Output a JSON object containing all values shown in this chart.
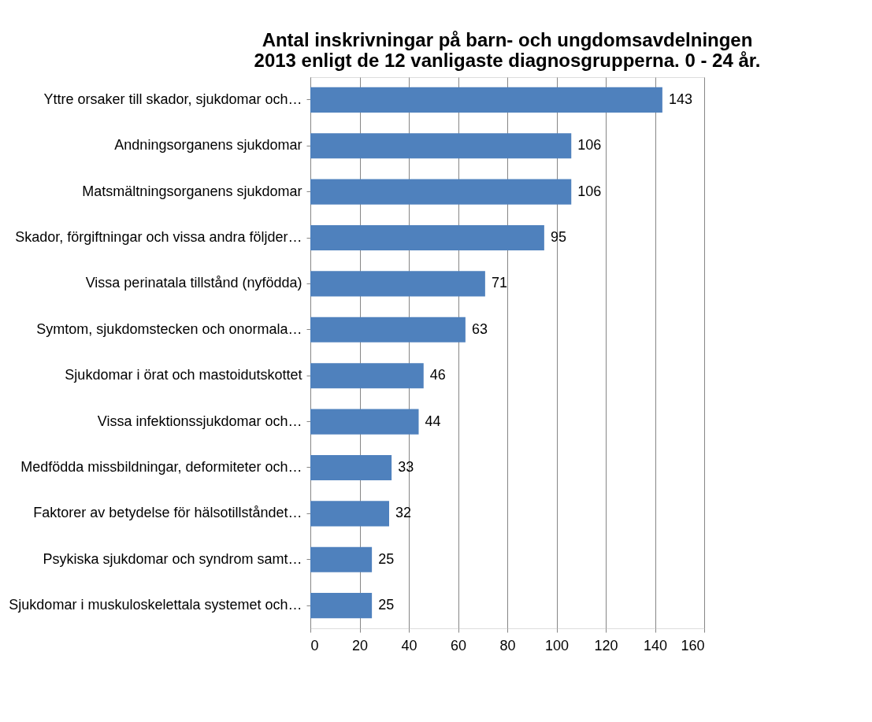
{
  "chart_data": {
    "type": "bar",
    "orientation": "horizontal",
    "title": [
      "Antal inskrivningar på barn- och ungdomsavdelningen",
      "2013 enligt de 12 vanligaste diagnosgrupperna. 0 - 24 år."
    ],
    "categories": [
      "Yttre orsaker till skador, sjukdomar och…",
      "Andningsorganens sjukdomar",
      "Matsmältningsorganens sjukdomar",
      "Skador, förgiftningar och vissa andra följder…",
      "Vissa perinatala tillstånd (nyfödda)",
      "Symtom, sjukdomstecken och onormala…",
      "Sjukdomar i örat och mastoidutskottet",
      "Vissa infektionssjukdomar och…",
      "Medfödda missbildningar, deformiteter och…",
      "Faktorer av betydelse för hälsotillståndet…",
      "Psykiska sjukdomar och syndrom samt…",
      "Sjukdomar i muskuloskelettala systemet och…"
    ],
    "values": [
      143,
      106,
      106,
      95,
      71,
      63,
      46,
      44,
      33,
      32,
      25,
      25
    ],
    "color": "#4f81bd",
    "xlim": [
      0,
      160
    ],
    "xticks": [
      0,
      20,
      40,
      60,
      80,
      100,
      120,
      140,
      160
    ],
    "grid": "x",
    "data_labels": true
  }
}
